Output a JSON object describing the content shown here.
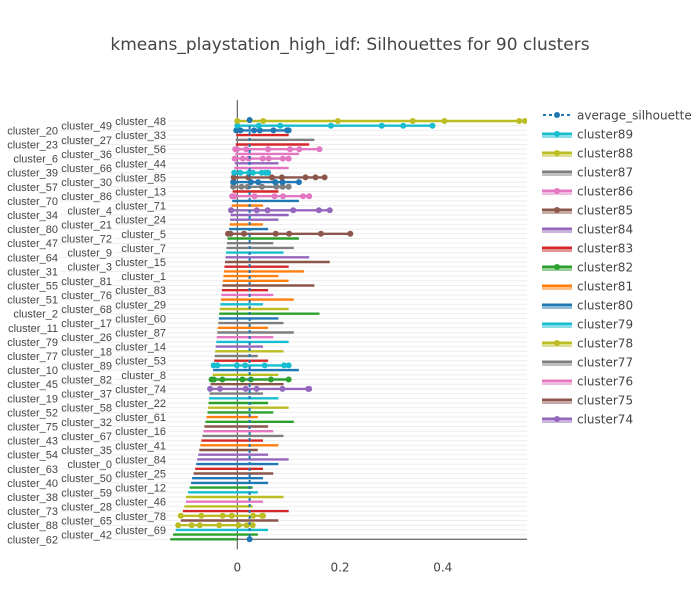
{
  "chart_data": {
    "type": "line",
    "title": "kmeans_playstation_high_idf: Silhouettes for 90 clusters",
    "xlabel": "",
    "ylabel": "",
    "xlim": [
      -0.131,
      0.564
    ],
    "x_ticks": [
      0,
      0.2,
      0.4
    ],
    "x_tick_labels": [
      "0",
      "0.2",
      "0.4"
    ],
    "grid": true,
    "legend_placement": "right",
    "average_silhouette": 0.024,
    "average_silhouette_name": "average_silhouette",
    "palette": [
      "#1f77b4",
      "#ff7f0e",
      "#2ca02c",
      "#d62728",
      "#9467bd",
      "#8c564b",
      "#e377c2",
      "#7f7f7f",
      "#bcbd22",
      "#17becf"
    ],
    "rows_top_to_bottom": {
      "clusters": [
        48,
        49,
        20,
        33,
        27,
        23,
        56,
        36,
        6,
        44,
        66,
        39,
        85,
        30,
        57,
        13,
        86,
        70,
        71,
        4,
        34,
        24,
        21,
        80,
        5,
        72,
        47,
        7,
        9,
        64,
        15,
        3,
        31,
        1,
        81,
        55,
        83,
        76,
        51,
        29,
        68,
        2,
        60,
        17,
        11,
        87,
        26,
        79,
        14,
        18,
        77,
        53,
        89,
        10,
        8,
        82,
        45,
        74,
        37,
        19,
        22,
        58,
        52,
        61,
        32,
        75,
        16,
        67,
        43,
        41,
        35,
        54,
        84,
        0,
        63,
        25,
        50,
        40,
        12,
        59,
        38,
        46,
        28,
        73,
        78,
        65,
        88,
        69,
        42,
        62
      ],
      "min_silhouette": [
        0,
        0,
        -0.002,
        -0.002,
        -0.003,
        -0.003,
        -0.004,
        -0.004,
        -0.005,
        -0.005,
        -0.006,
        -0.006,
        -0.007,
        -0.008,
        -0.008,
        -0.009,
        -0.01,
        -0.01,
        -0.011,
        -0.012,
        -0.013,
        -0.014,
        -0.015,
        -0.016,
        -0.018,
        -0.019,
        -0.02,
        -0.021,
        -0.022,
        -0.023,
        -0.024,
        -0.025,
        -0.026,
        -0.027,
        -0.028,
        -0.029,
        -0.03,
        -0.031,
        -0.032,
        -0.033,
        -0.034,
        -0.035,
        -0.036,
        -0.037,
        -0.038,
        -0.039,
        -0.04,
        -0.041,
        -0.042,
        -0.043,
        -0.044,
        -0.045,
        -0.046,
        -0.047,
        -0.048,
        -0.05,
        -0.052,
        -0.053,
        -0.054,
        -0.055,
        -0.056,
        -0.057,
        -0.058,
        -0.06,
        -0.062,
        -0.064,
        -0.066,
        -0.068,
        -0.07,
        -0.072,
        -0.074,
        -0.076,
        -0.078,
        -0.08,
        -0.082,
        -0.085,
        -0.088,
        -0.09,
        -0.093,
        -0.096,
        -0.1,
        -0.1,
        -0.103,
        -0.106,
        -0.11,
        -0.11,
        -0.115,
        -0.12,
        -0.125,
        -0.13
      ],
      "max_silhouette": [
        0.56,
        0.38,
        0.1,
        0.1,
        0.15,
        0.14,
        0.16,
        0.12,
        0.1,
        0.08,
        0.1,
        0.06,
        0.17,
        0.12,
        0.1,
        0.08,
        0.14,
        0.12,
        0.05,
        0.18,
        0.1,
        0.08,
        0.05,
        0.06,
        0.22,
        0.12,
        0.07,
        0.11,
        0.09,
        0.14,
        0.18,
        0.1,
        0.13,
        0.08,
        0.1,
        0.15,
        0.06,
        0.07,
        0.11,
        0.05,
        0.1,
        0.16,
        0.08,
        0.09,
        0.06,
        0.11,
        0.07,
        0.1,
        0.05,
        0.09,
        0.04,
        0.06,
        0.1,
        0.12,
        0.08,
        0.1,
        0.09,
        0.14,
        0.05,
        0.08,
        0.06,
        0.1,
        0.07,
        0.04,
        0.11,
        0.06,
        0.07,
        0.09,
        0.05,
        0.08,
        0.04,
        0.06,
        0.1,
        0.08,
        0.05,
        0.07,
        0.05,
        0.06,
        0.03,
        0.04,
        0.09,
        0.05,
        0.03,
        0.1,
        0.05,
        0.08,
        0.03,
        0.06,
        0.04,
        0.0
      ]
    },
    "clusters_with_markers": [
      48,
      49,
      85,
      20,
      56,
      6,
      39,
      30,
      86,
      4,
      82,
      78,
      89,
      88,
      74,
      57,
      5
    ]
  },
  "legend": {
    "items": [
      "average_silhouette",
      "cluster89",
      "cluster88",
      "cluster87",
      "cluster86",
      "cluster85",
      "cluster84",
      "cluster83",
      "cluster82",
      "cluster81",
      "cluster80",
      "cluster79",
      "cluster78",
      "cluster77",
      "cluster76",
      "cluster75",
      "cluster74"
    ]
  }
}
